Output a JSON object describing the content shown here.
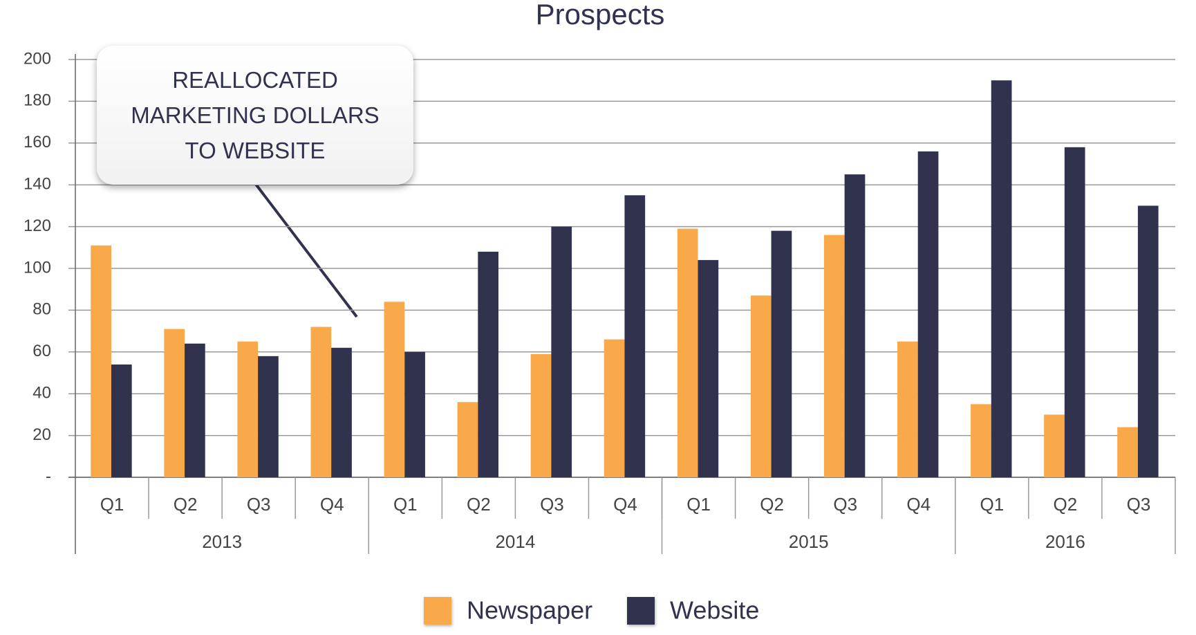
{
  "chart_data": {
    "type": "bar",
    "title": "Prospects",
    "categories": [
      "Q1",
      "Q2",
      "Q3",
      "Q4",
      "Q1",
      "Q2",
      "Q3",
      "Q4",
      "Q1",
      "Q2",
      "Q3",
      "Q4",
      "Q1",
      "Q2",
      "Q3"
    ],
    "x_groups": [
      "2013",
      "2014",
      "2015",
      "2016"
    ],
    "series": [
      {
        "name": "Newspaper",
        "color": "#f9a84a",
        "values": [
          111,
          71,
          65,
          72,
          84,
          36,
          59,
          66,
          119,
          87,
          116,
          65,
          35,
          30,
          24
        ]
      },
      {
        "name": "Website",
        "color": "#31324e",
        "values": [
          54,
          64,
          58,
          62,
          60,
          108,
          120,
          135,
          104,
          118,
          145,
          156,
          190,
          158,
          130
        ]
      }
    ],
    "ylim": [
      0,
      200
    ],
    "yticks": [
      {
        "value": 0,
        "label": "-"
      },
      20,
      40,
      60,
      80,
      100,
      120,
      140,
      160,
      180,
      200
    ],
    "grid": true,
    "legend": "bottom",
    "annotation": "REALLOCATED MARKETING DOLLARS TO WEBSITE"
  }
}
